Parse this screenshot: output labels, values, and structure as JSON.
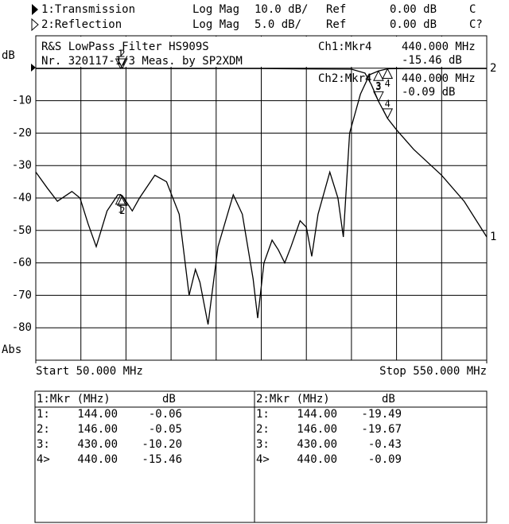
{
  "chart_data": {
    "type": "line",
    "title": "R&S LowPass Filter HS909S",
    "subtitle": "Nr. 320117-1/3 Meas. by SP2XDM",
    "y_label": "dB",
    "y_label_bottom": "Abs",
    "xlim": [
      50,
      550
    ],
    "xticks": [
      {
        "value": 50,
        "label": "Start 50.000 MHz"
      },
      {
        "value": 550,
        "label": "Stop 550.000 MHz"
      }
    ],
    "xgrid": [
      100,
      150,
      200,
      250,
      300,
      350,
      400,
      450,
      500
    ],
    "ylim": [
      -90,
      10
    ],
    "yticks": [
      -80,
      -70,
      -60,
      -50,
      -40,
      -30,
      -20,
      -10
    ],
    "y2lim": [
      -45,
      5
    ],
    "ref_level": 0,
    "grid": true,
    "markers": {
      "labels": [
        "1",
        "2",
        "3",
        "4"
      ],
      "x": [
        144,
        146,
        430,
        440
      ]
    },
    "series": [
      {
        "name": "1:Transmission",
        "trace_label": "1",
        "color": "#000000",
        "x": [
          50,
          100,
          144,
          146,
          200,
          300,
          400,
          415,
          422,
          430,
          440,
          450,
          469,
          500,
          525,
          550
        ],
        "values": [
          -0.1,
          -0.1,
          -0.06,
          -0.05,
          -0.1,
          -0.1,
          -0.3,
          -1.5,
          -5,
          -10.2,
          -15.46,
          -19,
          -25,
          -33,
          -41,
          -52
        ],
        "marker_values": [
          -0.06,
          -0.05,
          -10.2,
          -15.46
        ]
      },
      {
        "name": "2:Reflection",
        "trace_label": "2",
        "color": "#000000",
        "axis": "y2",
        "x": [
          50,
          63,
          74,
          90,
          99,
          108,
          117,
          129,
          141,
          144,
          146,
          150,
          157,
          165,
          182,
          195,
          209,
          220,
          227,
          232,
          241,
          252,
          269,
          279,
          291,
          296,
          303,
          312,
          319,
          326,
          333,
          343,
          350,
          356,
          363,
          376,
          385,
          391,
          398,
          410,
          420,
          430,
          440,
          460,
          500,
          550
        ],
        "values": [
          -16,
          -18.5,
          -20.5,
          -19,
          -20,
          -24,
          -27.5,
          -22,
          -19.5,
          -19.49,
          -19.67,
          -20.5,
          -22,
          -20,
          -16.5,
          -17.5,
          -22.5,
          -35,
          -31,
          -33,
          -39.5,
          -27.5,
          -19.5,
          -22.5,
          -32.5,
          -38.5,
          -30,
          -26.5,
          -28,
          -30,
          -27.5,
          -23.5,
          -24.5,
          -29,
          -22.5,
          -16,
          -20,
          -26,
          -10,
          -4,
          -1,
          -0.43,
          -0.09,
          -0.05,
          -0.05,
          -0.05
        ],
        "marker_values": [
          -19.49,
          -19.67,
          -0.43,
          -0.09
        ]
      }
    ]
  },
  "header": [
    {
      "format": "Log Mag",
      "scale": "10.0 dB/",
      "ref": "Ref",
      "ref_value": "0.00 dB",
      "status": "C"
    },
    {
      "format": "Log Mag",
      "scale": "5.0 dB/",
      "ref": "Ref",
      "ref_value": "0.00 dB",
      "status": "C?"
    }
  ],
  "readout": [
    {
      "marker": "Ch1:Mkr4",
      "freq": "440.000 MHz",
      "value": "-15.46 dB"
    },
    {
      "marker": "Ch2:Mkr4",
      "freq": "440.000 MHz",
      "value": "-0.09 dB"
    }
  ],
  "marker_tables": [
    {
      "title": "1:Mkr (MHz)",
      "unit": "dB",
      "rows": [
        [
          "1:",
          "144.00",
          "-0.06"
        ],
        [
          "2:",
          "146.00",
          "-0.05"
        ],
        [
          "3:",
          "430.00",
          "-10.20"
        ],
        [
          "4>",
          "440.00",
          "-15.46"
        ]
      ]
    },
    {
      "title": "2:Mkr (MHz)",
      "unit": "dB",
      "rows": [
        [
          "1:",
          "144.00",
          "-19.49"
        ],
        [
          "2:",
          "146.00",
          "-19.67"
        ],
        [
          "3:",
          "430.00",
          "-0.43"
        ],
        [
          "4>",
          "440.00",
          "-0.09"
        ]
      ]
    }
  ]
}
